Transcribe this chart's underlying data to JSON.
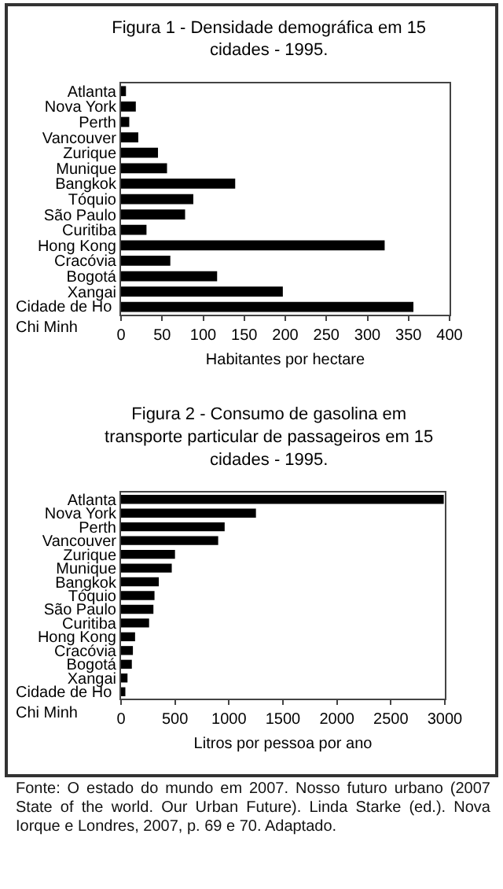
{
  "chart_data": [
    {
      "type": "bar",
      "orientation": "horizontal",
      "title": "Figura 1 - Densidade demográfica em 15 cidades - 1995.",
      "xlabel": "Habitantes por hectare",
      "categories": [
        "Atlanta",
        "Nova York",
        "Perth",
        "Vancouver",
        "Zurique",
        "Munique",
        "Bangkok",
        "Tóquio",
        "São Paulo",
        "Curitiba",
        "Hong Kong",
        "Cracóvia",
        "Bogotá",
        "Xangai",
        "Cidade de Ho Chi Minh"
      ],
      "values": [
        6,
        18,
        10,
        21,
        45,
        56,
        139,
        88,
        78,
        31,
        321,
        60,
        117,
        197,
        356
      ],
      "color": "#000000",
      "xlim": [
        0,
        400
      ],
      "xticks": [
        0,
        50,
        100,
        150,
        200,
        250,
        300,
        350,
        400
      ],
      "grid": false
    },
    {
      "type": "bar",
      "orientation": "horizontal",
      "title": "Figura 2 - Consumo de gasolina em transporte particular de passageiros em 15 cidades - 1995.",
      "xlabel": "Litros por pessoa por ano",
      "categories": [
        "Atlanta",
        "Nova York",
        "Perth",
        "Vancouver",
        "Zurique",
        "Munique",
        "Bangkok",
        "Tóquio",
        "São Paulo",
        "Curitiba",
        "Hong Kong",
        "Cracóvia",
        "Bogotá",
        "Xangai",
        "Cidade de Ho Chi Minh"
      ],
      "values": [
        2990,
        1250,
        960,
        900,
        500,
        470,
        350,
        310,
        300,
        260,
        130,
        110,
        100,
        60,
        40
      ],
      "color": "#000000",
      "xlim": [
        0,
        3000
      ],
      "xticks": [
        0,
        500,
        1000,
        1500,
        2000,
        2500,
        3000
      ],
      "grid": false,
      "annotations": [
        "Fonte: O estado do mundo em 2007. Nosso futuro urbano (2007 State of the world. Our Urban Future). Linda Starke (ed.). Nova Iorque e Londres, 2007, p. 69 e 70. Adaptado."
      ]
    }
  ]
}
